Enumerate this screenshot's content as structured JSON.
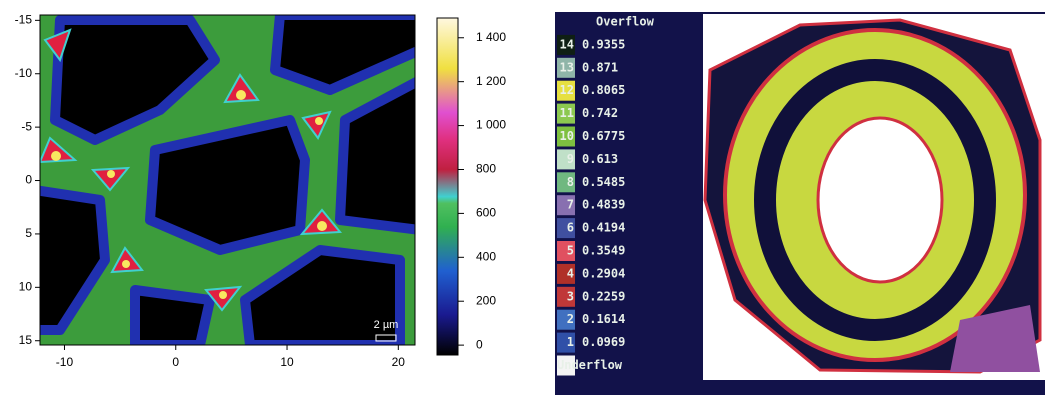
{
  "chart_data": [
    {
      "type": "heatmap",
      "xlim": [
        -12.2,
        21.5
      ],
      "xticks": [
        -10,
        0,
        10,
        20
      ],
      "ylim": [
        -15.5,
        15.4
      ],
      "yticks": [
        -15,
        -10,
        -5,
        0,
        5,
        10,
        15
      ],
      "clim": [
        -45,
        1490
      ],
      "cticks": [
        0,
        200,
        400,
        600,
        {
          "value": 800,
          "label": "800"
        },
        {
          "value": 1000,
          "label": "1 000"
        },
        {
          "value": 1200,
          "label": "1 200"
        },
        {
          "value": 1400,
          "label": "1 400"
        }
      ],
      "scale_bar": "2 µm"
    },
    {
      "type": "level-legend",
      "overflow": "Overflow",
      "underflow": "Underflow",
      "levels": [
        14,
        13,
        12,
        11,
        10,
        9,
        8,
        7,
        6,
        5,
        4,
        3,
        2,
        1
      ],
      "values": [
        0.9355,
        0.871,
        0.8065,
        0.742,
        0.6775,
        0.613,
        0.5485,
        0.4839,
        0.4194,
        0.3549,
        0.2904,
        0.2259,
        0.1614,
        0.0969
      ],
      "colors": [
        "#0f1f14",
        "#8fb5a8",
        "#e6e040",
        "#8cc850",
        "#7ec040",
        "#c0e0c8",
        "#70b880",
        "#8870b0",
        "#4050a0",
        "#e05060",
        "#b03028",
        "#c03838",
        "#4070c0",
        "#3050a8"
      ]
    }
  ]
}
